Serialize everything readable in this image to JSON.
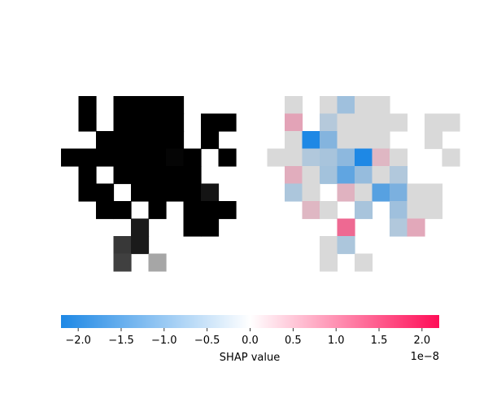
{
  "chart_data": [
    {
      "type": "heatmap",
      "panel": "input-image",
      "colormap": "grayscale",
      "grid": {
        "rows": 10,
        "cols": 10
      },
      "cells": [
        {
          "r": 0,
          "c": 1,
          "v": 0.0
        },
        {
          "r": 0,
          "c": 3,
          "v": 0.0
        },
        {
          "r": 0,
          "c": 4,
          "v": 0.0
        },
        {
          "r": 0,
          "c": 5,
          "v": 0.0
        },
        {
          "r": 0,
          "c": 6,
          "v": 0.0
        },
        {
          "r": 1,
          "c": 1,
          "v": 0.0
        },
        {
          "r": 1,
          "c": 3,
          "v": 0.0
        },
        {
          "r": 1,
          "c": 4,
          "v": 0.0
        },
        {
          "r": 1,
          "c": 5,
          "v": 0.0
        },
        {
          "r": 1,
          "c": 6,
          "v": 0.0
        },
        {
          "r": 1,
          "c": 8,
          "v": 0.0
        },
        {
          "r": 1,
          "c": 9,
          "v": 0.0
        },
        {
          "r": 2,
          "c": 2,
          "v": 0.0
        },
        {
          "r": 2,
          "c": 3,
          "v": 0.0
        },
        {
          "r": 2,
          "c": 4,
          "v": 0.0
        },
        {
          "r": 2,
          "c": 5,
          "v": 0.0
        },
        {
          "r": 2,
          "c": 6,
          "v": 0.0
        },
        {
          "r": 2,
          "c": 8,
          "v": 0.0
        },
        {
          "r": 3,
          "c": 0,
          "v": 0.0
        },
        {
          "r": 3,
          "c": 1,
          "v": 0.0
        },
        {
          "r": 3,
          "c": 2,
          "v": 0.0
        },
        {
          "r": 3,
          "c": 3,
          "v": 0.0
        },
        {
          "r": 3,
          "c": 4,
          "v": 0.0
        },
        {
          "r": 3,
          "c": 5,
          "v": 0.0
        },
        {
          "r": 3,
          "c": 6,
          "v": 0.02
        },
        {
          "r": 3,
          "c": 7,
          "v": 0.0
        },
        {
          "r": 3,
          "c": 9,
          "v": 0.0
        },
        {
          "r": 4,
          "c": 1,
          "v": 0.0
        },
        {
          "r": 4,
          "c": 3,
          "v": 0.0
        },
        {
          "r": 4,
          "c": 4,
          "v": 0.0
        },
        {
          "r": 4,
          "c": 5,
          "v": 0.0
        },
        {
          "r": 4,
          "c": 6,
          "v": 0.0
        },
        {
          "r": 4,
          "c": 7,
          "v": 0.0
        },
        {
          "r": 5,
          "c": 1,
          "v": 0.0
        },
        {
          "r": 5,
          "c": 2,
          "v": 0.0
        },
        {
          "r": 5,
          "c": 4,
          "v": 0.0
        },
        {
          "r": 5,
          "c": 5,
          "v": 0.0
        },
        {
          "r": 5,
          "c": 6,
          "v": 0.0
        },
        {
          "r": 5,
          "c": 7,
          "v": 0.0
        },
        {
          "r": 5,
          "c": 8,
          "v": 0.08
        },
        {
          "r": 6,
          "c": 2,
          "v": 0.0
        },
        {
          "r": 6,
          "c": 3,
          "v": 0.0
        },
        {
          "r": 6,
          "c": 5,
          "v": 0.0
        },
        {
          "r": 6,
          "c": 7,
          "v": 0.0
        },
        {
          "r": 6,
          "c": 8,
          "v": 0.0
        },
        {
          "r": 6,
          "c": 9,
          "v": 0.0
        },
        {
          "r": 7,
          "c": 4,
          "v": 0.1
        },
        {
          "r": 7,
          "c": 7,
          "v": 0.0
        },
        {
          "r": 7,
          "c": 8,
          "v": 0.0
        },
        {
          "r": 8,
          "c": 3,
          "v": 0.22
        },
        {
          "r": 8,
          "c": 4,
          "v": 0.1
        },
        {
          "r": 9,
          "c": 3,
          "v": 0.25
        },
        {
          "r": 9,
          "c": 5,
          "v": 0.65
        }
      ]
    },
    {
      "type": "heatmap",
      "panel": "shap-overlay",
      "colormap": "shap red-blue",
      "grid": {
        "rows": 10,
        "cols": 10
      },
      "cells": [
        {
          "r": 0,
          "c": 0,
          "v": 0.0
        },
        {
          "r": 0,
          "c": 2,
          "v": 0.0
        },
        {
          "r": 0,
          "c": 3,
          "v": -4e-09
        },
        {
          "r": 0,
          "c": 4,
          "v": 0.0
        },
        {
          "r": 0,
          "c": 5,
          "v": 0.0
        },
        {
          "r": 1,
          "c": 0,
          "v": 3e-09
        },
        {
          "r": 1,
          "c": 2,
          "v": -1.5e-09
        },
        {
          "r": 1,
          "c": 3,
          "v": 0.0
        },
        {
          "r": 1,
          "c": 4,
          "v": 0.0
        },
        {
          "r": 1,
          "c": 5,
          "v": 0.0
        },
        {
          "r": 1,
          "c": 6,
          "v": 0.0
        },
        {
          "r": 1,
          "c": 8,
          "v": 0.0
        },
        {
          "r": 1,
          "c": 9,
          "v": 0.0
        },
        {
          "r": 2,
          "c": 0,
          "v": 0.0
        },
        {
          "r": 2,
          "c": 1,
          "v": -1.9e-08
        },
        {
          "r": 2,
          "c": 2,
          "v": -7e-09
        },
        {
          "r": 2,
          "c": 3,
          "v": 0.0
        },
        {
          "r": 2,
          "c": 4,
          "v": 0.0
        },
        {
          "r": 2,
          "c": 5,
          "v": 0.0
        },
        {
          "r": 2,
          "c": 8,
          "v": 0.0
        },
        {
          "r": 3,
          "c": -1,
          "v": 0.0
        },
        {
          "r": 3,
          "c": 0,
          "v": 0.0
        },
        {
          "r": 3,
          "c": 1,
          "v": -2e-09
        },
        {
          "r": 3,
          "c": 2,
          "v": -3e-09
        },
        {
          "r": 3,
          "c": 3,
          "v": -6e-09
        },
        {
          "r": 3,
          "c": 4,
          "v": -2.1e-08
        },
        {
          "r": 3,
          "c": 5,
          "v": 1e-09
        },
        {
          "r": 3,
          "c": 6,
          "v": 0.0
        },
        {
          "r": 3,
          "c": 9,
          "v": 0.0
        },
        {
          "r": 4,
          "c": 0,
          "v": 2e-09
        },
        {
          "r": 4,
          "c": 1,
          "v": 0.0
        },
        {
          "r": 4,
          "c": 2,
          "v": -3.5e-09
        },
        {
          "r": 4,
          "c": 3,
          "v": -1.1e-08
        },
        {
          "r": 4,
          "c": 4,
          "v": -5e-09
        },
        {
          "r": 4,
          "c": 5,
          "v": 0.0
        },
        {
          "r": 4,
          "c": 6,
          "v": -2e-09
        },
        {
          "r": 5,
          "c": 0,
          "v": -2.5e-09
        },
        {
          "r": 5,
          "c": 1,
          "v": 0.0
        },
        {
          "r": 5,
          "c": 3,
          "v": 1.5e-09
        },
        {
          "r": 5,
          "c": 4,
          "v": 0.0
        },
        {
          "r": 5,
          "c": 5,
          "v": -1.2e-08
        },
        {
          "r": 5,
          "c": 6,
          "v": -8e-09
        },
        {
          "r": 5,
          "c": 7,
          "v": 0.0
        },
        {
          "r": 5,
          "c": 8,
          "v": 0.0
        },
        {
          "r": 6,
          "c": 1,
          "v": 1e-09
        },
        {
          "r": 6,
          "c": 2,
          "v": 0.0
        },
        {
          "r": 6,
          "c": 4,
          "v": -3e-09
        },
        {
          "r": 6,
          "c": 6,
          "v": -4e-09
        },
        {
          "r": 6,
          "c": 7,
          "v": 0.0
        },
        {
          "r": 6,
          "c": 8,
          "v": 0.0
        },
        {
          "r": 7,
          "c": 3,
          "v": 9e-09
        },
        {
          "r": 7,
          "c": 6,
          "v": -2e-09
        },
        {
          "r": 7,
          "c": 7,
          "v": 2.5e-09
        },
        {
          "r": 8,
          "c": 2,
          "v": 0.0
        },
        {
          "r": 8,
          "c": 3,
          "v": -2.5e-09
        },
        {
          "r": 9,
          "c": 2,
          "v": 0.0
        },
        {
          "r": 9,
          "c": 4,
          "v": 5e-10
        }
      ]
    }
  ],
  "colorbar": {
    "vmin": -2.2,
    "vmax": 2.2,
    "ticks": [
      "−2.0",
      "−1.5",
      "−1.0",
      "−0.5",
      "0.0",
      "0.5",
      "1.0",
      "1.5",
      "2.0"
    ],
    "tick_values": [
      -2.0,
      -1.5,
      -1.0,
      -0.5,
      0.0,
      0.5,
      1.0,
      1.5,
      2.0
    ],
    "label": "SHAP value",
    "offset_text": "1e−8",
    "colors": {
      "negative": "#1e88e5",
      "zero": "#ffffff",
      "positive": "#ff0d57"
    }
  },
  "colors": {
    "background": "#ffffff",
    "neutral_overlay": "#d9d9d9"
  }
}
